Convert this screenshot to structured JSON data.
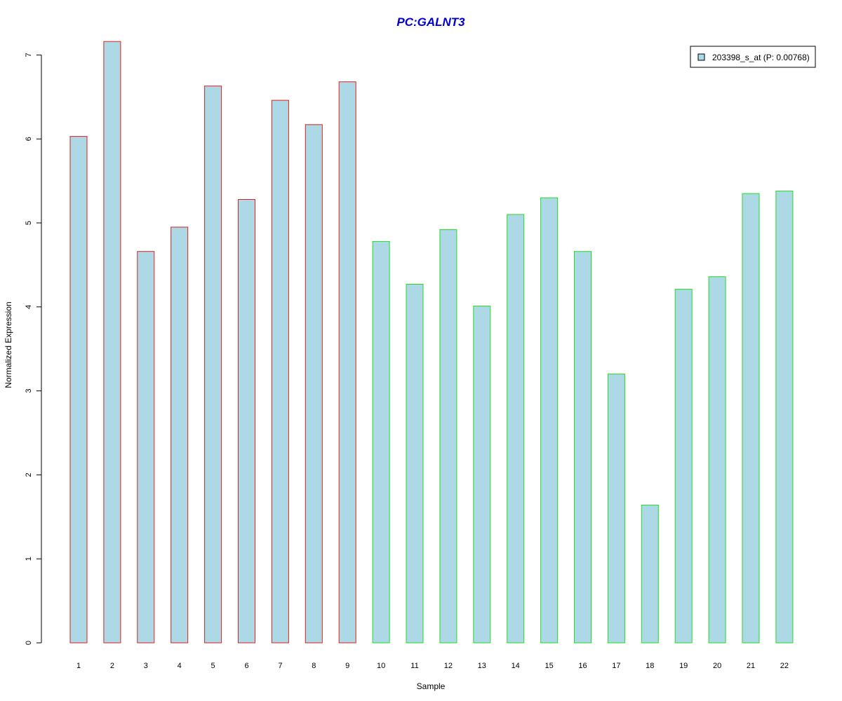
{
  "chart_data": {
    "type": "bar",
    "title": "PC:GALNT3",
    "xlabel": "Sample",
    "ylabel": "Normalized Expression",
    "categories": [
      "1",
      "2",
      "3",
      "4",
      "5",
      "6",
      "7",
      "8",
      "9",
      "10",
      "11",
      "12",
      "13",
      "14",
      "15",
      "16",
      "17",
      "18",
      "19",
      "20",
      "21",
      "22"
    ],
    "series": [
      {
        "name": "203398_s_at (P: 0.00768)",
        "values": [
          6.03,
          7.16,
          4.66,
          4.95,
          6.63,
          5.28,
          6.46,
          6.17,
          6.68,
          4.78,
          4.27,
          4.92,
          4.01,
          5.1,
          5.3,
          4.66,
          3.2,
          1.64,
          4.21,
          4.36,
          5.35,
          5.38
        ]
      }
    ],
    "groups": [
      {
        "samples": [
          "1",
          "2",
          "3",
          "4",
          "5",
          "6",
          "7",
          "8",
          "9"
        ],
        "border_color": "#e0201a"
      },
      {
        "samples": [
          "10",
          "11",
          "12",
          "13",
          "14",
          "15",
          "16",
          "17",
          "18",
          "19",
          "20",
          "21",
          "22"
        ],
        "border_color": "#22dd22"
      }
    ],
    "fill_color": "#add8e6",
    "title_color": "#0000cc",
    "yticks": [
      "0",
      "1",
      "2",
      "3",
      "4",
      "5",
      "6",
      "7"
    ],
    "ylim": [
      0,
      7.2
    ],
    "grid": false,
    "legend": {
      "position": "top-right",
      "label": "203398_s_at (P: 0.00768)"
    }
  }
}
